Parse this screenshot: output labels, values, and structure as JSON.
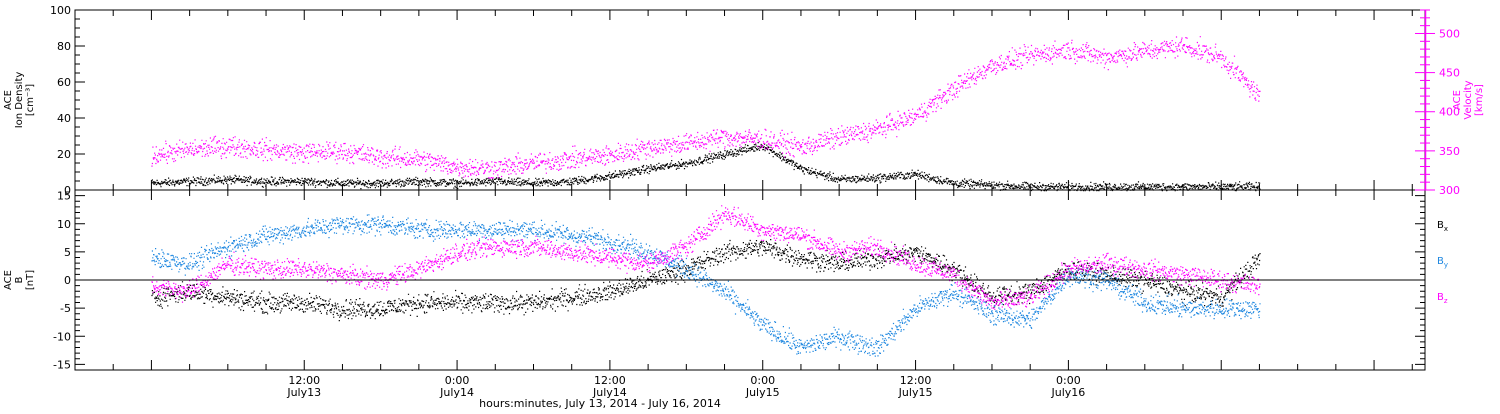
{
  "chart_data": [
    {
      "type": "scatter",
      "panel": "top",
      "ylabel_left": [
        "ACE",
        "Ion Density",
        "[cm⁻³]"
      ],
      "ylabel_right": [
        "ACE",
        "Velocity",
        "[km/s]"
      ],
      "ylim_left": [
        0,
        100
      ],
      "ylim_right": [
        300,
        530
      ],
      "left_tick_labels": [
        "0",
        "20",
        "40",
        "60",
        "80",
        "100"
      ],
      "right_tick_labels": [
        "300",
        "350",
        "400",
        "450",
        "500"
      ],
      "series": [
        {
          "axis": "left",
          "color": "#000000",
          "comment": "Ion density (black)",
          "x": [
            0,
            3,
            6,
            9,
            12,
            15,
            18,
            21,
            24,
            27,
            30,
            33,
            36,
            39,
            42,
            45,
            48,
            51,
            54,
            57,
            60,
            63,
            66,
            69,
            72,
            75,
            78,
            81,
            84,
            87
          ],
          "values": [
            4,
            5,
            6,
            5,
            5,
            4,
            4,
            5,
            4,
            5,
            4,
            5,
            8,
            12,
            15,
            20,
            25,
            12,
            6,
            7,
            9,
            4,
            3,
            2,
            2,
            2,
            2,
            2,
            2,
            2
          ]
        },
        {
          "axis": "right",
          "color": "#ff00ff",
          "comment": "Solar wind velocity (magenta)",
          "x": [
            0,
            3,
            6,
            9,
            12,
            15,
            18,
            21,
            24,
            27,
            30,
            33,
            36,
            39,
            42,
            45,
            48,
            51,
            54,
            57,
            60,
            63,
            66,
            69,
            72,
            75,
            78,
            81,
            84,
            87
          ],
          "values": [
            345,
            352,
            357,
            352,
            348,
            350,
            342,
            340,
            330,
            328,
            335,
            340,
            345,
            355,
            360,
            368,
            365,
            355,
            368,
            378,
            395,
            430,
            460,
            472,
            480,
            470,
            478,
            485,
            470,
            420
          ]
        }
      ]
    },
    {
      "type": "scatter",
      "panel": "bottom",
      "ylabel_left": [
        "ACE",
        "B",
        "[nT]"
      ],
      "ylim": [
        -16,
        16
      ],
      "left_tick_labels": [
        "-15",
        "-10",
        "-5",
        "0",
        "5",
        "10",
        "15"
      ],
      "legend": [
        {
          "label": "Bx",
          "base": "B",
          "sub": "x",
          "color": "#000000"
        },
        {
          "label": "By",
          "base": "B",
          "sub": "y",
          "color": "#1e87e0"
        },
        {
          "label": "Bz",
          "base": "B",
          "sub": "z",
          "color": "#ff00ff"
        }
      ],
      "series": [
        {
          "name": "Bx",
          "color": "#000000",
          "x": [
            0,
            3,
            6,
            9,
            12,
            15,
            18,
            21,
            24,
            27,
            30,
            33,
            36,
            39,
            42,
            45,
            48,
            51,
            54,
            57,
            60,
            63,
            66,
            69,
            72,
            75,
            78,
            81,
            84,
            87
          ],
          "values": [
            -3,
            -2,
            -3,
            -4,
            -4,
            -5,
            -5,
            -4,
            -4,
            -4,
            -4,
            -3,
            -2,
            0,
            2,
            5,
            6,
            4,
            3,
            4,
            5,
            2,
            -3,
            -2,
            2,
            1,
            0,
            -2,
            -3,
            4
          ]
        },
        {
          "name": "By",
          "color": "#1e87e0",
          "x": [
            0,
            3,
            6,
            9,
            12,
            15,
            18,
            21,
            24,
            27,
            30,
            33,
            36,
            39,
            42,
            45,
            48,
            51,
            54,
            57,
            60,
            63,
            66,
            69,
            72,
            75,
            78,
            81,
            84,
            87
          ],
          "values": [
            4,
            3,
            6,
            8,
            9,
            10,
            10,
            9,
            9,
            9,
            9,
            8,
            7,
            5,
            2,
            -2,
            -8,
            -12,
            -10,
            -12,
            -5,
            -2,
            -6,
            -7,
            1,
            0,
            -4,
            -5,
            -5,
            -5
          ]
        },
        {
          "name": "Bz",
          "color": "#ff00ff",
          "x": [
            0,
            3,
            6,
            9,
            12,
            15,
            18,
            21,
            24,
            27,
            30,
            33,
            36,
            39,
            42,
            45,
            48,
            51,
            54,
            57,
            60,
            63,
            66,
            69,
            72,
            75,
            78,
            81,
            84,
            87
          ],
          "values": [
            -1,
            -2,
            3,
            2,
            2,
            1,
            0,
            2,
            5,
            6,
            6,
            5,
            4,
            3,
            6,
            12,
            9,
            8,
            5,
            6,
            3,
            1,
            -4,
            -3,
            2,
            3,
            2,
            1,
            0,
            -1
          ]
        }
      ]
    },
    {
      "type": "axis",
      "panel": "time-axis",
      "xlabel": "hours:minutes, July 13, 2014 - July 16, 2014",
      "xlim": [
        -6,
        100
      ],
      "time_ticks": [
        {
          "x": 12,
          "top": "12:00",
          "bottom": "July13"
        },
        {
          "x": 24,
          "top": "0:00",
          "bottom": "July14"
        },
        {
          "x": 36,
          "top": "12:00",
          "bottom": "July14"
        },
        {
          "x": 48,
          "top": "0:00",
          "bottom": "July15"
        },
        {
          "x": 60,
          "top": "12:00",
          "bottom": "July15"
        },
        {
          "x": 72,
          "top": "0:00",
          "bottom": "July16"
        }
      ]
    }
  ]
}
